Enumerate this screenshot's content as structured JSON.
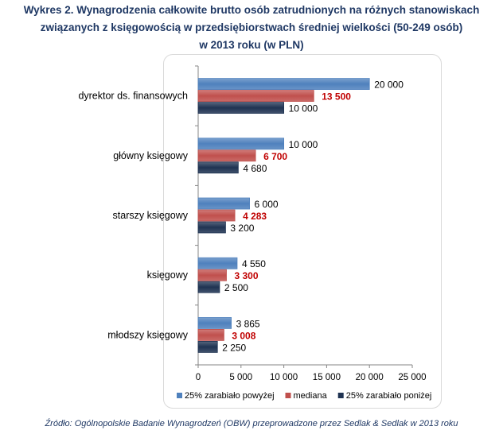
{
  "title_lines": [
    "Wykres 2. Wynagrodzenia całkowite brutto osób zatrudnionych na różnych stanowiskach",
    "związanych z księgowością w przedsiębiorstwach średniej wielkości (50-249 osób)",
    "w 2013 roku (w PLN)"
  ],
  "source": "Źródło: Ogólnopolskie Badanie Wynagrodzeń (OBW) przeprowadzone  przez  Sedlak & Sedlak w 2013 roku",
  "chart_data": {
    "type": "bar",
    "orientation": "horizontal",
    "categories": [
      "dyrektor ds. finansowych",
      "główny księgowy",
      "starszy księgowy",
      "księgowy",
      "młodszy księgowy"
    ],
    "series": [
      {
        "name": "25% zarabiało powyżej",
        "values": [
          20000,
          10000,
          6000,
          4550,
          3865
        ],
        "labels": [
          "20 000",
          "10 000",
          "6 000",
          "4 550",
          "3 865"
        ],
        "color": "#4f81bd",
        "label_color": "#000000"
      },
      {
        "name": "mediana",
        "values": [
          13500,
          6700,
          4283,
          3300,
          3008
        ],
        "labels": [
          "13 500",
          "6 700",
          "4 283",
          "3 300",
          "3 008"
        ],
        "color": "#c0504d",
        "label_color": "#c00000"
      },
      {
        "name": "25% zarabiało poniżej",
        "values": [
          10000,
          4680,
          3200,
          2500,
          2250
        ],
        "labels": [
          "10 000",
          "4 680",
          "3 200",
          "2 500",
          "2 250"
        ],
        "color": "#1f3352",
        "label_color": "#000000"
      }
    ],
    "xlim": [
      0,
      25000
    ],
    "xticks": [
      0,
      5000,
      10000,
      15000,
      20000,
      25000
    ],
    "xtick_labels": [
      "0",
      "5 000",
      "10 000",
      "15 000",
      "20 000",
      "25 000"
    ],
    "grid": false,
    "legend_position": "bottom"
  }
}
